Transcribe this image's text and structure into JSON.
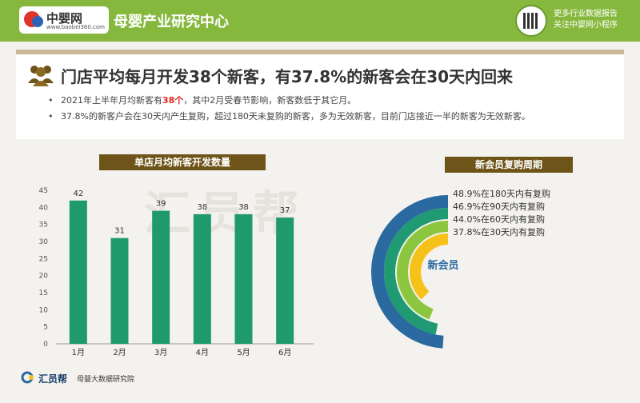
{
  "header": {
    "logo_name": "中婴网",
    "logo_url": "www.baobei360.com",
    "brand_title": "母婴产业研究中心",
    "promo_line1": "更多行业数据报告",
    "promo_line2": "关注中婴网小程序"
  },
  "headline": {
    "title": "门店平均每月开发38个新客，有37.8%的新客会在30天内回来",
    "bullet1_prefix": "2021年上半年月均新客有",
    "bullet1_highlight": "38个",
    "bullet1_suffix": "，其中2月受春节影响，新客数低于其它月。",
    "bullet2": "37.8%的新客户会在30天内产生复购，超过180天未复购的新客，多为无效新客，目前门店接近一半的新客为无效新客。"
  },
  "bar_label": "单店月均新客开发数量",
  "ring_label": "新会员复购周期",
  "ring_center": "新会员",
  "watermark": "汇员帮",
  "footer": {
    "name": "汇员帮",
    "subtitle": "母婴大数据研究院"
  },
  "colors": {
    "green": "#86b83e",
    "bar": "#1e9a6e",
    "brown": "#6e5418",
    "ring_blue": "#2b6aa0",
    "ring_teal": "#1f9a72",
    "ring_green": "#8cc63f",
    "ring_yellow": "#f6c21a"
  },
  "chart_data": [
    {
      "type": "bar",
      "title": "单店月均新客开发数量",
      "categories": [
        "1月",
        "2月",
        "3月",
        "4月",
        "5月",
        "6月"
      ],
      "values": [
        42,
        31,
        39,
        38,
        38,
        37
      ],
      "ylim": [
        0,
        45
      ],
      "yticks": [
        0,
        5,
        10,
        15,
        20,
        25,
        30,
        35,
        40,
        45
      ],
      "grid": false
    },
    {
      "type": "pie",
      "title": "新会员复购周期",
      "center_label": "新会员",
      "labels": [
        "48.9%在180天内有复购",
        "46.9%在90天内有复购",
        "44.0%在60天内有复购",
        "37.8%在30天内有复购"
      ],
      "values": [
        48.9,
        46.9,
        44.0,
        37.8
      ]
    }
  ]
}
